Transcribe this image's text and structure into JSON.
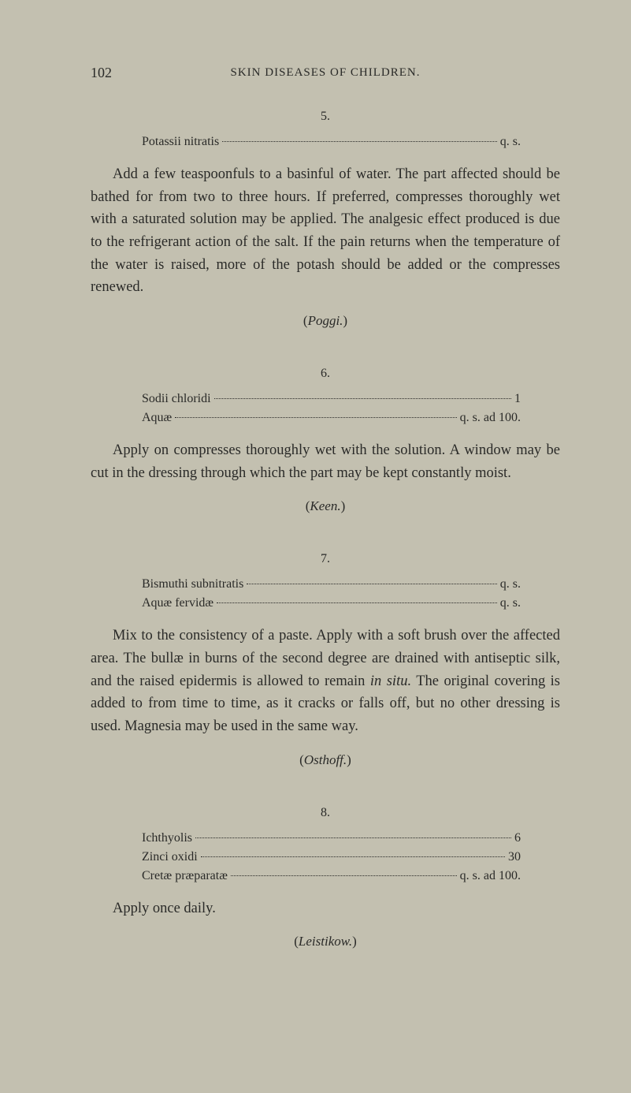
{
  "page_number": "102",
  "running_header": "SKIN DISEASES OF CHILDREN.",
  "sections": [
    {
      "number": "5.",
      "prescription": [
        {
          "name": "Potassii nitratis",
          "value": "q. s."
        }
      ],
      "body": "Add a few teaspoonfuls to a basinful of water. The part affected should be bathed for from two to three hours. If preferred, compresses thoroughly wet with a saturated solution may be applied. The analgesic effect produced is due to the refrigerant action of the salt. If the pain returns when the temperature of the water is raised, more of the potash should be added or the compresses renewed.",
      "attribution": "Poggi."
    },
    {
      "number": "6.",
      "prescription": [
        {
          "name": "Sodii chloridi",
          "value": "1"
        },
        {
          "name": "Aquæ",
          "value": "q. s. ad 100."
        }
      ],
      "body": "Apply on compresses thoroughly wet with the solution. A window may be cut in the dressing through which the part may be kept constantly moist.",
      "attribution": "Keen."
    },
    {
      "number": "7.",
      "prescription": [
        {
          "name": "Bismuthi subnitratis",
          "value": "q. s."
        },
        {
          "name": "Aquæ fervidæ",
          "value": "q. s."
        }
      ],
      "body_prefix": "Mix to the consistency of a paste. Apply with a soft brush over the affected area. The bullæ in burns of the second degree are drained with antiseptic silk, and the raised epidermis is allowed to remain ",
      "body_italic": "in situ.",
      "body_suffix": " The original covering is added to from time to time, as it cracks or falls off, but no other dressing is used. Magnesia may be used in the same way.",
      "attribution": "Osthoff."
    },
    {
      "number": "8.",
      "prescription": [
        {
          "name": "Ichthyolis",
          "value": "6"
        },
        {
          "name": "Zinci oxidi",
          "value": "30"
        },
        {
          "name": "Cretæ præparatæ",
          "value": "q. s. ad 100."
        }
      ],
      "body": "Apply once daily.",
      "attribution": "Leistikow."
    }
  ]
}
